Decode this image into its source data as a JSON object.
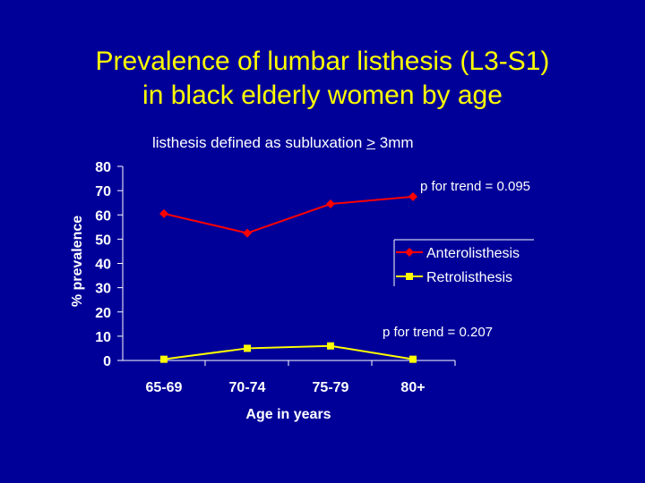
{
  "slide": {
    "title_line1": "Prevalence of lumbar listhesis (L3-S1)",
    "title_line2": "in black elderly women by age",
    "subtitle_prefix": "listhesis defined as subluxation ",
    "subtitle_ge": ">",
    "subtitle_suffix": " 3mm"
  },
  "colors": {
    "background": "#000099",
    "title": "#FFFF00",
    "text": "#FFFFFF",
    "antero": "#FF0000",
    "retro": "#FFFF00"
  },
  "chart_data": {
    "type": "line",
    "categories": [
      "65-69",
      "70-74",
      "75-79",
      "80+"
    ],
    "series": [
      {
        "name": "Anterolisthesis",
        "values": [
          60.5,
          52.5,
          64.5,
          67.5
        ],
        "color": "#FF0000",
        "marker": "diamond"
      },
      {
        "name": "Retrolisthesis",
        "values": [
          0.5,
          5,
          6,
          0.5
        ],
        "color": "#FFFF00",
        "marker": "square"
      }
    ],
    "title": "",
    "xlabel": "Age in years",
    "ylabel": "% prevalence",
    "ylim": [
      0,
      80
    ],
    "yticks": [
      0,
      10,
      20,
      30,
      40,
      50,
      60,
      70,
      80
    ],
    "grid": false,
    "legend": "right",
    "annotations": [
      "p for trend = 0.095",
      "p for trend = 0.207"
    ]
  }
}
